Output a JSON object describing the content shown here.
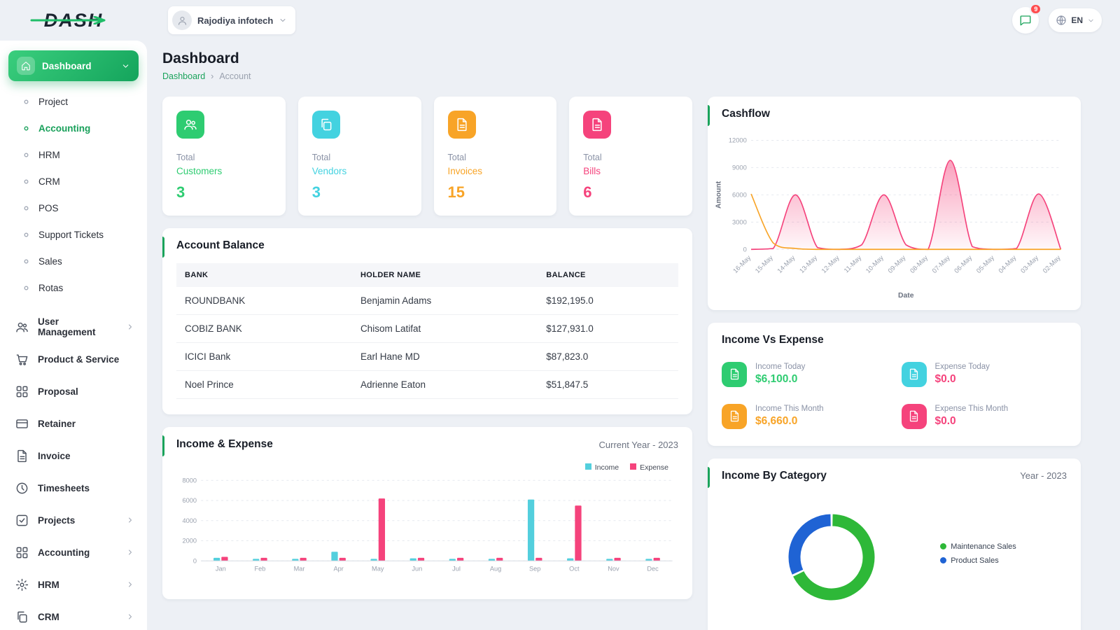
{
  "brand": {
    "name": "DASH"
  },
  "theme": {
    "accent": "#1aa35b",
    "green": "#2ecc71",
    "cyan": "#43d2e0",
    "orange": "#f8a427",
    "pink": "#f5437c"
  },
  "topbar": {
    "company": "Rajodiya infotech",
    "chat_badge": "9",
    "language": "EN"
  },
  "sidebar": {
    "dashboard": "Dashboard",
    "sub_items": [
      "Project",
      "Accounting",
      "HRM",
      "CRM",
      "POS",
      "Support Tickets",
      "Sales",
      "Rotas"
    ],
    "menu_items": [
      "User Management",
      "Product & Service",
      "Proposal",
      "Retainer",
      "Invoice",
      "Timesheets",
      "Projects",
      "Accounting",
      "HRM",
      "CRM"
    ]
  },
  "page": {
    "title": "Dashboard",
    "breadcrumb": [
      "Dashboard",
      "Account"
    ],
    "breadcrumb_sep": "›"
  },
  "stats": [
    {
      "prefix": "Total",
      "label": "Customers",
      "value": "3",
      "color": "#2ecc71"
    },
    {
      "prefix": "Total",
      "label": "Vendors",
      "value": "3",
      "color": "#43d2e0"
    },
    {
      "prefix": "Total",
      "label": "Invoices",
      "value": "15",
      "color": "#f8a427"
    },
    {
      "prefix": "Total",
      "label": "Bills",
      "value": "6",
      "color": "#f5437c"
    }
  ],
  "account_balance": {
    "title": "Account Balance",
    "columns": [
      "BANK",
      "HOLDER NAME",
      "BALANCE"
    ],
    "rows": [
      [
        "ROUNDBANK",
        "Benjamin Adams",
        "$192,195.0"
      ],
      [
        "COBIZ BANK",
        "Chisom Latifat",
        "$127,931.0"
      ],
      [
        "ICICI Bank",
        "Earl Hane MD",
        "$87,823.0"
      ],
      [
        "Noel Prince",
        "Adrienne Eaton",
        "$51,847.5"
      ]
    ]
  },
  "income_vs_expense": {
    "title": "Income Vs Expense",
    "items": [
      {
        "label": "Income Today",
        "value": "$6,100.0",
        "color": "#2ecc71"
      },
      {
        "label": "Expense Today",
        "value": "$0.0",
        "color": "#f5437c"
      },
      {
        "label": "Income This Month",
        "value": "$6,660.0",
        "color": "#f8a427"
      },
      {
        "label": "Expense This Month",
        "value": "$0.0",
        "color": "#f5437c"
      }
    ]
  },
  "chart_data": [
    {
      "type": "line",
      "title": "Cashflow",
      "x": [
        "16-May",
        "15-May",
        "14-May",
        "13-May",
        "12-May",
        "11-May",
        "10-May",
        "09-May",
        "08-May",
        "07-May",
        "06-May",
        "05-May",
        "04-May",
        "03-May",
        "02-May"
      ],
      "xlabel": "Date",
      "ylabel": "Amount",
      "ylim": [
        0,
        12000
      ],
      "yticks": [
        0,
        3000,
        6000,
        9000,
        12000
      ],
      "grid": true,
      "series": [
        {
          "color": "#f5437c",
          "fill": true,
          "values": [
            0,
            100,
            6000,
            200,
            0,
            500,
            6000,
            500,
            0,
            9800,
            300,
            0,
            100,
            6100,
            0
          ]
        },
        {
          "color": "#f8a427",
          "fill": false,
          "values": [
            6100,
            700,
            100,
            0,
            0,
            0,
            0,
            0,
            0,
            0,
            0,
            0,
            0,
            0,
            0
          ]
        }
      ]
    },
    {
      "type": "bar",
      "title": "Income & Expense",
      "period": "Current Year - 2023",
      "categories": [
        "Jan",
        "Feb",
        "Mar",
        "Apr",
        "May",
        "Jun",
        "Jul",
        "Aug",
        "Sep",
        "Oct",
        "Nov",
        "Dec"
      ],
      "ylim": [
        0,
        8000
      ],
      "yticks": [
        0,
        2000,
        4000,
        6000,
        8000
      ],
      "grid": true,
      "legend_position": "top-right",
      "series": [
        {
          "name": "Income",
          "color": "#53cfdd",
          "values": [
            300,
            200,
            200,
            900,
            200,
            250,
            200,
            200,
            6100,
            250,
            200,
            200
          ]
        },
        {
          "name": "Expense",
          "color": "#f5437c",
          "values": [
            400,
            300,
            300,
            300,
            6200,
            300,
            300,
            300,
            300,
            5500,
            300,
            300
          ]
        }
      ]
    },
    {
      "type": "pie",
      "title": "Income By Category",
      "period": "Year - 2023",
      "labels": [
        "Maintenance Sales",
        "Product Sales"
      ],
      "values": [
        68,
        32
      ],
      "colors": [
        "#2eb838",
        "#1f63d4"
      ],
      "donut": true,
      "legend_position": "right"
    }
  ]
}
